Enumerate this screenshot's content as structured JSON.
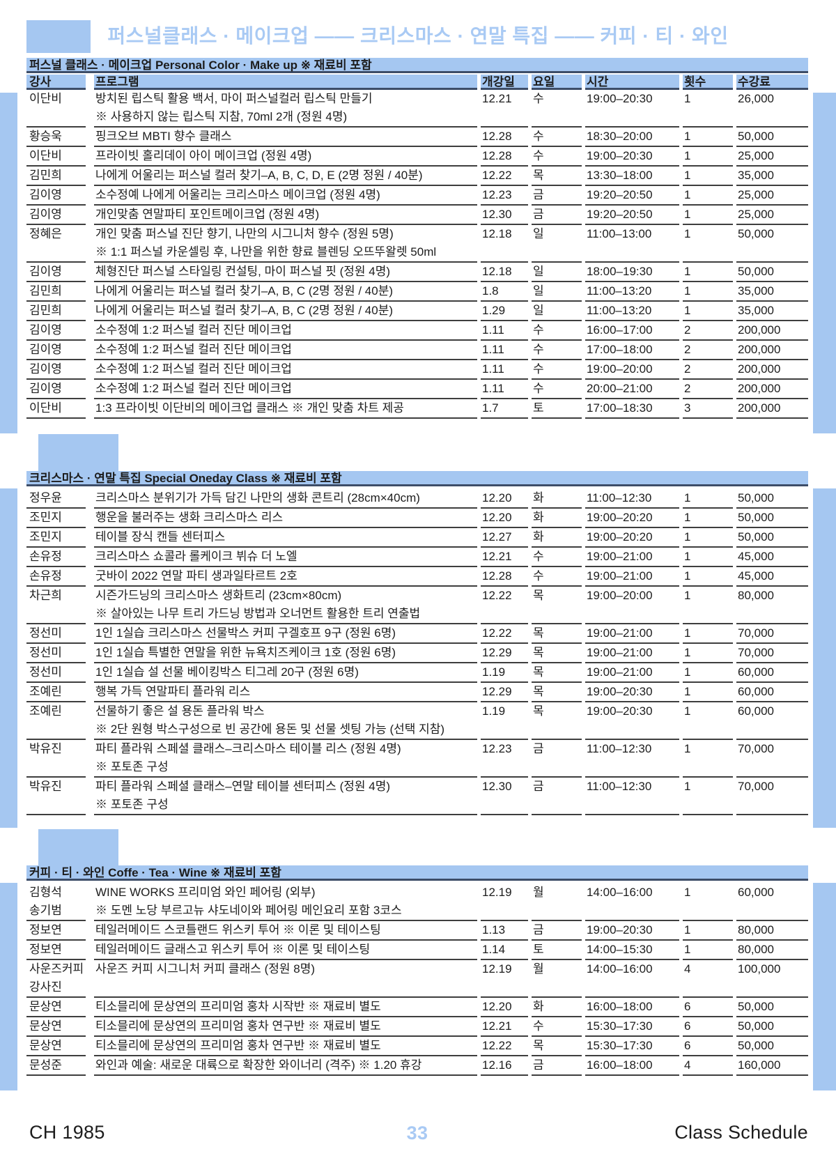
{
  "page": {
    "title": "퍼스널클래스 · 메이크업 —— 크리스마스 · 연말 특집 —— 커피 · 티 · 와인",
    "page_number": "33",
    "footer_left": "CH 1985",
    "footer_right": "Class Schedule"
  },
  "colors": {
    "accent_blue": "#a5c7f1",
    "title_blue": "#a9caf4",
    "rule_navy": "#3d4d68",
    "row_rule": "#3e3e3e",
    "text": "#1c1c1c"
  },
  "columns": [
    "강사",
    "프로그램",
    "개강일",
    "요일",
    "시간",
    "횟수",
    "수강료"
  ],
  "sections": [
    {
      "title": "퍼스널 클래스 · 메이크업 Personal Color · Make up ※ 재료비 포함",
      "show_column_header": true,
      "rows": [
        {
          "instructor": "이단비",
          "program": "방치된 립스틱 활용 백서, 마이 퍼스널컬러 립스틱 만들기",
          "note": "※ 사용하지 않는 립스틱 지참, 70ml 2개 (정원 4명)",
          "date": "12.21",
          "day": "수",
          "time": "19:00–20:30",
          "count": "1",
          "fee": "26,000"
        },
        {
          "instructor": "황승욱",
          "program": "핑크오브 MBTI 향수 클래스",
          "date": "12.28",
          "day": "수",
          "time": "18:30–20:00",
          "count": "1",
          "fee": "50,000"
        },
        {
          "instructor": "이단비",
          "program": "프라이빗 홀리데이 아이 메이크업 (정원 4명)",
          "date": "12.28",
          "day": "수",
          "time": "19:00–20:30",
          "count": "1",
          "fee": "25,000"
        },
        {
          "instructor": "김민희",
          "program": "나에게 어울리는 퍼스널 컬러 찾기–A, B, C, D, E (2명 정원 / 40분)",
          "date": "12.22",
          "day": "목",
          "time": "13:30–18:00",
          "count": "1",
          "fee": "35,000"
        },
        {
          "instructor": "김이영",
          "program": "소수정예 나에게 어울리는 크리스마스 메이크업 (정원 4명)",
          "date": "12.23",
          "day": "금",
          "time": "19:20–20:50",
          "count": "1",
          "fee": "25,000"
        },
        {
          "instructor": "김이영",
          "program": "개인맞춤 연말파티 포인트메이크업 (정원 4명)",
          "date": "12.30",
          "day": "금",
          "time": "19:20–20:50",
          "count": "1",
          "fee": "25,000"
        },
        {
          "instructor": "정혜은",
          "program": "개인 맞춤 퍼스널 진단 향기, 나만의 시그니처 향수 (정원 5명)",
          "note": "※ 1:1 퍼스널 카운셀링 후, 나만을 위한 향료 블렌딩 오뜨뚜왈렛 50ml",
          "date": "12.18",
          "day": "일",
          "time": "11:00–13:00",
          "count": "1",
          "fee": "50,000"
        },
        {
          "instructor": "김이영",
          "program": "체형진단 퍼스널 스타일링 컨설팅, 마이 퍼스널 핏 (정원 4명)",
          "date": "12.18",
          "day": "일",
          "time": "18:00–19:30",
          "count": "1",
          "fee": "50,000"
        },
        {
          "instructor": "김민희",
          "program": "나에게 어울리는 퍼스널 컬러 찾기–A, B, C (2명 정원 / 40분)",
          "date": "1.8",
          "day": "일",
          "time": "11:00–13:20",
          "count": "1",
          "fee": "35,000"
        },
        {
          "instructor": "김민희",
          "program": "나에게 어울리는 퍼스널 컬러 찾기–A, B, C (2명 정원 / 40분)",
          "date": "1.29",
          "day": "일",
          "time": "11:00–13:20",
          "count": "1",
          "fee": "35,000"
        },
        {
          "instructor": "김이영",
          "program": "소수정예 1:2 퍼스널 컬러 진단 메이크업",
          "date": "1.11",
          "day": "수",
          "time": "16:00–17:00",
          "count": "2",
          "fee": "200,000"
        },
        {
          "instructor": "김이영",
          "program": "소수정예 1:2 퍼스널 컬러 진단 메이크업",
          "date": "1.11",
          "day": "수",
          "time": "17:00–18:00",
          "count": "2",
          "fee": "200,000"
        },
        {
          "instructor": "김이영",
          "program": "소수정예 1:2 퍼스널 컬러 진단 메이크업",
          "date": "1.11",
          "day": "수",
          "time": "19:00–20:00",
          "count": "2",
          "fee": "200,000"
        },
        {
          "instructor": "김이영",
          "program": "소수정예 1:2 퍼스널 컬러 진단 메이크업",
          "date": "1.11",
          "day": "수",
          "time": "20:00–21:00",
          "count": "2",
          "fee": "200,000"
        },
        {
          "instructor": "이단비",
          "program": "1:3 프라이빗 이단비의 메이크업 클래스 ※ 개인 맞춤 차트 제공",
          "date": "1.7",
          "day": "토",
          "time": "17:00–18:30",
          "count": "3",
          "fee": "200,000"
        }
      ]
    },
    {
      "title": "크리스마스 · 연말 특집 Special Oneday Class ※ 재료비 포함",
      "show_column_header": false,
      "rows": [
        {
          "instructor": "정우윤",
          "program": "크리스마스 분위기가 가득 담긴 나만의 생화 콘트리 (28cm×40cm)",
          "date": "12.20",
          "day": "화",
          "time": "11:00–12:30",
          "count": "1",
          "fee": "50,000"
        },
        {
          "instructor": "조민지",
          "program": "행운을 불러주는 생화 크리스마스 리스",
          "date": "12.20",
          "day": "화",
          "time": "19:00–20:20",
          "count": "1",
          "fee": "50,000"
        },
        {
          "instructor": "조민지",
          "program": "테이블 장식 캔들 센터피스",
          "date": "12.27",
          "day": "화",
          "time": "19:00–20:20",
          "count": "1",
          "fee": "50,000"
        },
        {
          "instructor": "손유정",
          "program": "크리스마스 쇼콜라 롤케이크 뷔슈 더 노엘",
          "date": "12.21",
          "day": "수",
          "time": "19:00–21:00",
          "count": "1",
          "fee": "45,000"
        },
        {
          "instructor": "손유정",
          "program": "굿바이 2022 연말 파티 생과일타르트 2호",
          "date": "12.28",
          "day": "수",
          "time": "19:00–21:00",
          "count": "1",
          "fee": "45,000"
        },
        {
          "instructor": "차근희",
          "program": "시즌가드닝의 크리스마스 생화트리 (23cm×80cm)",
          "note": "※ 살아있는 나무 트리 가드닝 방법과 오너먼트 활용한 트리 연출법",
          "date": "12.22",
          "day": "목",
          "time": "19:00–20:00",
          "count": "1",
          "fee": "80,000"
        },
        {
          "instructor": "정선미",
          "program": "1인 1실습 크리스마스 선물박스 커피 구겔호프 9구 (정원 6명)",
          "date": "12.22",
          "day": "목",
          "time": "19:00–21:00",
          "count": "1",
          "fee": "70,000"
        },
        {
          "instructor": "정선미",
          "program": "1인 1실습 특별한 연말을 위한 뉴욕치즈케이크 1호 (정원 6명)",
          "date": "12.29",
          "day": "목",
          "time": "19:00–21:00",
          "count": "1",
          "fee": "70,000"
        },
        {
          "instructor": "정선미",
          "program": "1인 1실습 설 선물 베이킹박스 티그레 20구 (정원 6명)",
          "date": "1.19",
          "day": "목",
          "time": "19:00–21:00",
          "count": "1",
          "fee": "60,000"
        },
        {
          "instructor": "조예린",
          "program": "행복 가득 연말파티 플라워 리스",
          "date": "12.29",
          "day": "목",
          "time": "19:00–20:30",
          "count": "1",
          "fee": "60,000"
        },
        {
          "instructor": "조예린",
          "program": "선물하기 좋은 설 용돈 플라워 박스",
          "note": "※ 2단 원형 박스구성으로 빈 공간에 용돈 및 선물 셋팅 가능 (선택 지참)",
          "date": "1.19",
          "day": "목",
          "time": "19:00–20:30",
          "count": "1",
          "fee": "60,000"
        },
        {
          "instructor": "박유진",
          "program": "파티 플라워 스페셜 클래스–크리스마스 테이블 리스 (정원 4명)",
          "note": "※ 포토존 구성",
          "date": "12.23",
          "day": "금",
          "time": "11:00–12:30",
          "count": "1",
          "fee": "70,000"
        },
        {
          "instructor": "박유진",
          "program": "파티 플라워 스페셜 클래스–연말 테이블 센터피스 (정원 4명)",
          "note": "※ 포토존 구성",
          "date": "12.30",
          "day": "금",
          "time": "11:00–12:30",
          "count": "1",
          "fee": "70,000"
        }
      ]
    },
    {
      "title": "커피 · 티 · 와인 Coffe · Tea · Wine ※ 재료비 포함",
      "show_column_header": false,
      "rows": [
        {
          "instructor": "김형석",
          "instructor2": "송기범",
          "program": "WINE WORKS 프리미엄 와인 페어링 (외부)",
          "note": "※ 도멘 노당 부르고뉴 샤도네이와 페어링 메인요리 포함 3코스",
          "date": "12.19",
          "day": "월",
          "time": "14:00–16:00",
          "count": "1",
          "fee": "60,000"
        },
        {
          "instructor": "정보연",
          "program": "테일러메이드 스코틀랜드 위스키 투어 ※ 이론 및 테이스팅",
          "date": "1.13",
          "day": "금",
          "time": "19:00–20:30",
          "count": "1",
          "fee": "80,000"
        },
        {
          "instructor": "정보연",
          "program": "테일러메이드 글래스고 위스키 투어 ※ 이론 및 테이스팅",
          "date": "1.14",
          "day": "토",
          "time": "14:00–15:30",
          "count": "1",
          "fee": "80,000"
        },
        {
          "instructor": "사운즈커피",
          "instructor2": "강사진",
          "program": "사운즈 커피 시그니처 커피 클래스 (정원 8명)",
          "date": "12.19",
          "day": "월",
          "time": "14:00–16:00",
          "count": "4",
          "fee": "100,000"
        },
        {
          "instructor": "문상연",
          "program": "티소믈리에 문상연의 프리미엄 홍차 시작반 ※ 재료비 별도",
          "date": "12.20",
          "day": "화",
          "time": "16:00–18:00",
          "count": "6",
          "fee": "50,000"
        },
        {
          "instructor": "문상연",
          "program": "티소믈리에 문상연의 프리미엄 홍차 연구반 ※ 재료비 별도",
          "date": "12.21",
          "day": "수",
          "time": "15:30–17:30",
          "count": "6",
          "fee": "50,000"
        },
        {
          "instructor": "문상연",
          "program": "티소믈리에 문상연의 프리미엄 홍차 연구반 ※ 재료비 별도",
          "date": "12.22",
          "day": "목",
          "time": "15:30–17:30",
          "count": "6",
          "fee": "50,000"
        },
        {
          "instructor": "문성준",
          "program": "와인과 예술: 새로운 대륙으로 확장한 와이너리 (격주) ※ 1.20 휴강",
          "date": "12.16",
          "day": "금",
          "time": "16:00–18:00",
          "count": "4",
          "fee": "160,000"
        }
      ]
    }
  ]
}
